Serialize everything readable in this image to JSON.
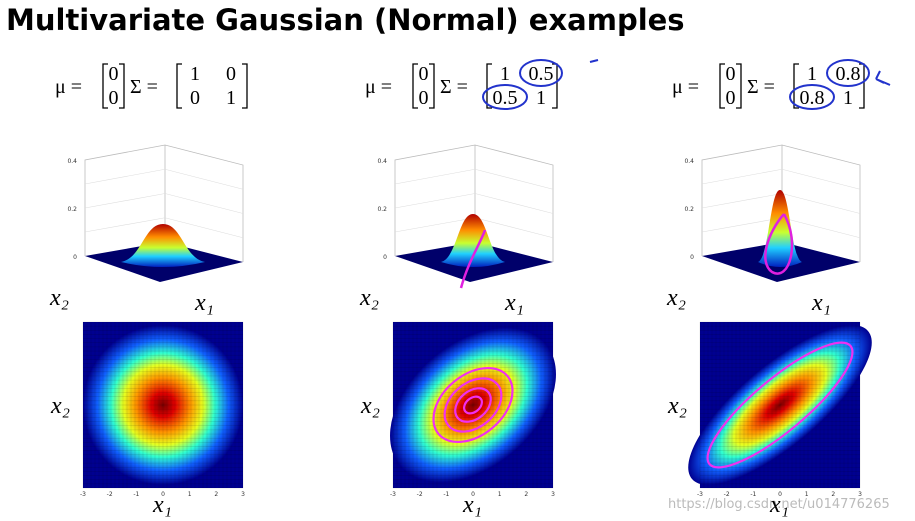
{
  "title": "Multivariate Gaussian (Normal) examples",
  "panels": [
    {
      "mu_label": "μ =",
      "mu": [
        "0",
        "0"
      ],
      "sigma_label": "Σ =",
      "sigma": [
        [
          "1",
          "0"
        ],
        [
          "0",
          "1"
        ]
      ],
      "surface_x_label": "x₂",
      "surface_y_label": "x₁",
      "surface_z_ticks": [
        "0.4",
        "0.2",
        "0"
      ],
      "contour_x_label": "x₁",
      "contour_y_label": "x₂",
      "contour_ticks": [
        "-3",
        "-2",
        "-1",
        "0",
        "1",
        "2",
        "3"
      ]
    },
    {
      "mu_label": "μ =",
      "mu": [
        "0",
        "0"
      ],
      "sigma_label": "Σ =",
      "sigma": [
        [
          "1",
          "0.5"
        ],
        [
          "0.5",
          "1"
        ]
      ],
      "surface_x_label": "x₂",
      "surface_y_label": "x₁",
      "surface_z_ticks": [
        "0.4",
        "0.2",
        "0"
      ],
      "contour_x_label": "x₁",
      "contour_y_label": "x₂",
      "contour_ticks": [
        "-3",
        "-2",
        "-1",
        "0",
        "1",
        "2",
        "3"
      ]
    },
    {
      "mu_label": "μ =",
      "mu": [
        "0",
        "0"
      ],
      "sigma_label": "Σ =",
      "sigma": [
        [
          "1",
          "0.8"
        ],
        [
          "0.8",
          "1"
        ]
      ],
      "surface_x_label": "x₂",
      "surface_y_label": "x₁",
      "surface_z_ticks": [
        "0.4",
        "0.2",
        "0"
      ],
      "contour_x_label": "x₁",
      "contour_y_label": "x₂",
      "contour_ticks": [
        "-3",
        "-2",
        "-1",
        "0",
        "1",
        "2",
        "3"
      ]
    }
  ],
  "watermark": "https://blog.csdn.net/u014776265"
}
